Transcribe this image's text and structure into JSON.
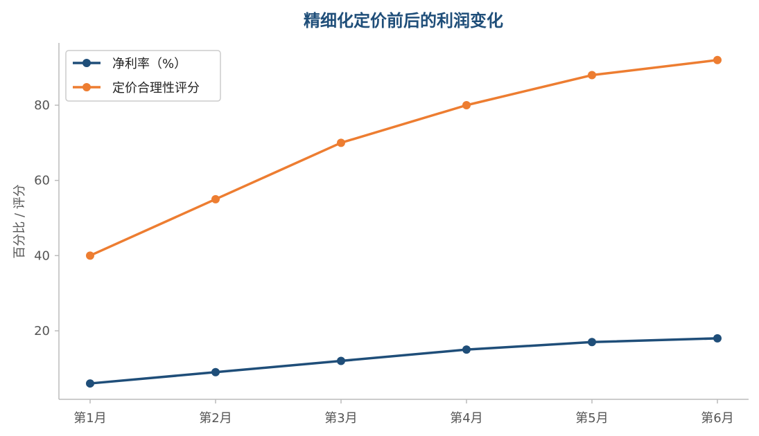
{
  "chart_data": {
    "type": "line",
    "title": "精细化定价前后的利润变化",
    "xlabel": "",
    "ylabel": "百分比 / 评分",
    "categories": [
      "第1月",
      "第2月",
      "第3月",
      "第4月",
      "第5月",
      "第6月"
    ],
    "ylim": [
      2,
      96
    ],
    "yticks": [
      20,
      40,
      60,
      80
    ],
    "grid": false,
    "legend_position": "top-left",
    "series": [
      {
        "name": "净利率（%）",
        "values": [
          6,
          9,
          12,
          15,
          17,
          18
        ],
        "color": "#1f4e79"
      },
      {
        "name": "定价合理性评分",
        "values": [
          40,
          55,
          70,
          80,
          88,
          92
        ],
        "color": "#ed7d31"
      }
    ]
  },
  "colors": {
    "title": "#1f4e79",
    "axis": "#bbbbbb"
  }
}
